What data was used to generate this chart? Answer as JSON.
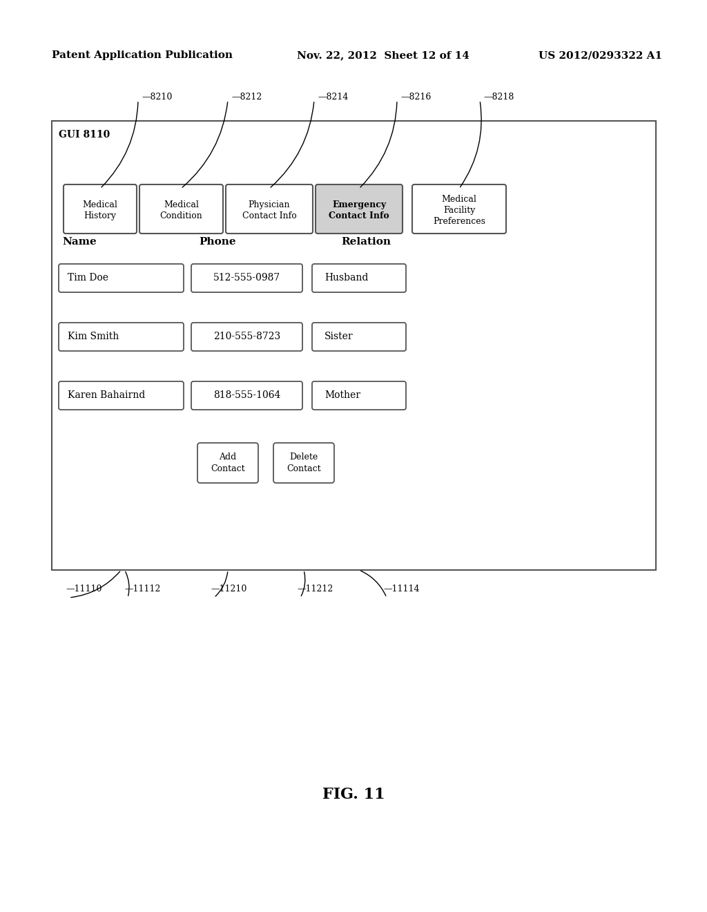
{
  "header_left": "Patent Application Publication",
  "header_mid": "Nov. 22, 2012  Sheet 12 of 14",
  "header_right": "US 2012/0293322 A1",
  "gui_label": "GUI 8110",
  "tab_labels": [
    "Medical\nHistory",
    "Medical\nCondition",
    "Physician\nContact Info",
    "Emergency\nContact Info",
    "Medical\nFacility\nPreferences"
  ],
  "tab_ids": [
    "8210",
    "8212",
    "8214",
    "8216",
    "8218"
  ],
  "active_tab": 3,
  "col_headers": [
    "Name",
    "Phone",
    "Relation"
  ],
  "contacts": [
    {
      "name": "Tim Doe",
      "phone": "512-555-0987",
      "relation": "Husband"
    },
    {
      "name": "Kim Smith",
      "phone": "210-555-8723",
      "relation": "Sister"
    },
    {
      "name": "Karen Bahairnd",
      "phone": "818-555-1064",
      "relation": "Mother"
    }
  ],
  "button_add": "Add\nContact",
  "button_delete": "Delete\nContact",
  "bottom_labels": [
    "11110",
    "11112",
    "11210",
    "11212",
    "11114"
  ],
  "figure_label": "FIG. 11",
  "bg_color": "#ffffff",
  "box_color": "#000000",
  "active_tab_fill": "#d0d0d0",
  "inactive_tab_fill": "#ffffff"
}
